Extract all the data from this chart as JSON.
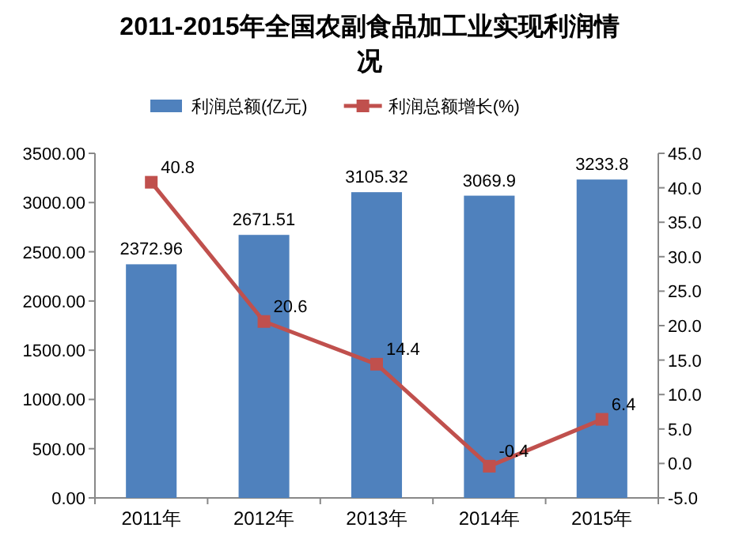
{
  "chart_data": {
    "type": "bar",
    "title": "2011-2015年全国农副食品加工业实现利润情况",
    "categories": [
      "2011年",
      "2012年",
      "2013年",
      "2014年",
      "2015年"
    ],
    "series": [
      {
        "name": "利润总额(亿元)",
        "color": "#4f81bd",
        "values": [
          2372.96,
          2671.51,
          3105.32,
          3069.9,
          3233.8
        ]
      },
      {
        "name": "利润总额增长(%)",
        "type": "line",
        "axis": "y2",
        "color": "#c0504d",
        "marker": "square",
        "values": [
          40.8,
          20.6,
          14.4,
          -0.4,
          6.4
        ]
      }
    ],
    "ylim": [
      0,
      3500
    ],
    "yticks": [
      {
        "value": 0,
        "label": "0.00"
      },
      {
        "value": 500,
        "label": "500.00"
      },
      {
        "value": 1000,
        "label": "1000.00"
      },
      {
        "value": 1500,
        "label": "1500.00"
      },
      {
        "value": 2000,
        "label": "2000.00"
      },
      {
        "value": 2500,
        "label": "2500.00"
      },
      {
        "value": 3000,
        "label": "3000.00"
      },
      {
        "value": 3500,
        "label": "3500.00"
      }
    ],
    "y2lim": [
      -5,
      45
    ],
    "y2ticks": [
      {
        "value": -5,
        "label": "-5.0"
      },
      {
        "value": 0,
        "label": "0.0"
      },
      {
        "value": 5,
        "label": "5.0"
      },
      {
        "value": 10,
        "label": "10.0"
      },
      {
        "value": 15,
        "label": "15.0"
      },
      {
        "value": 20,
        "label": "20.0"
      },
      {
        "value": 25,
        "label": "25.0"
      },
      {
        "value": 30,
        "label": "30.0"
      },
      {
        "value": 35,
        "label": "35.0"
      },
      {
        "value": 40,
        "label": "40.0"
      },
      {
        "value": 45,
        "label": "45.0"
      }
    ],
    "data_labels": true,
    "legend": "top",
    "grid": false
  }
}
